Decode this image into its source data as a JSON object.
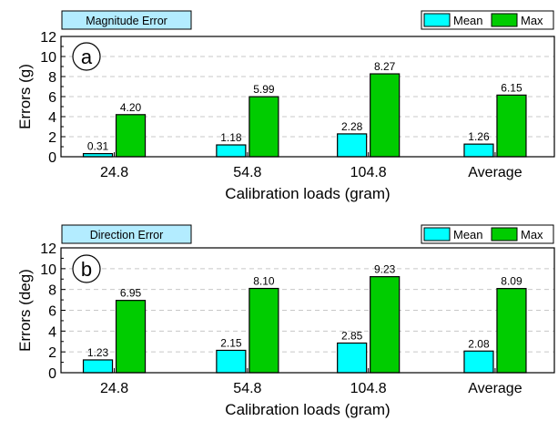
{
  "colors": {
    "mean": "#00ffff",
    "max": "#00cc00",
    "title_box": "#b3ecff",
    "grid": "#c8c8c8"
  },
  "chart_data": [
    {
      "type": "bar",
      "panel_label": "a",
      "title": "Magnitude Error",
      "xlabel": "Calibration loads (gram)",
      "ylabel": "Errors (g)",
      "ylim": [
        0,
        12
      ],
      "yticks": [
        "0",
        "2",
        "4",
        "6",
        "8",
        "10",
        "12"
      ],
      "grid": "horizontal dashed",
      "legend_position": "top-right",
      "categories": [
        "24.8",
        "54.8",
        "104.8",
        "Average"
      ],
      "series": [
        {
          "name": "Mean",
          "values": [
            0.31,
            1.18,
            2.28,
            1.26
          ],
          "labels": [
            "0.31",
            "1.18",
            "2.28",
            "1.26"
          ]
        },
        {
          "name": "Max",
          "values": [
            4.2,
            5.99,
            8.27,
            6.15
          ],
          "labels": [
            "4.20",
            "5.99",
            "8.27",
            "6.15"
          ]
        }
      ]
    },
    {
      "type": "bar",
      "panel_label": "b",
      "title": "Direction Error",
      "xlabel": "Calibration loads (gram)",
      "ylabel": "Errors (deg)",
      "ylim": [
        0,
        12
      ],
      "yticks": [
        "0",
        "2",
        "4",
        "6",
        "8",
        "10",
        "12"
      ],
      "grid": "horizontal dashed",
      "legend_position": "top-right",
      "categories": [
        "24.8",
        "54.8",
        "104.8",
        "Average"
      ],
      "series": [
        {
          "name": "Mean",
          "values": [
            1.23,
            2.15,
            2.85,
            2.08
          ],
          "labels": [
            "1.23",
            "2.15",
            "2.85",
            "2.08"
          ]
        },
        {
          "name": "Max",
          "values": [
            6.95,
            8.1,
            9.23,
            8.09
          ],
          "labels": [
            "6.95",
            "8.10",
            "9.23",
            "8.09"
          ]
        }
      ]
    }
  ]
}
